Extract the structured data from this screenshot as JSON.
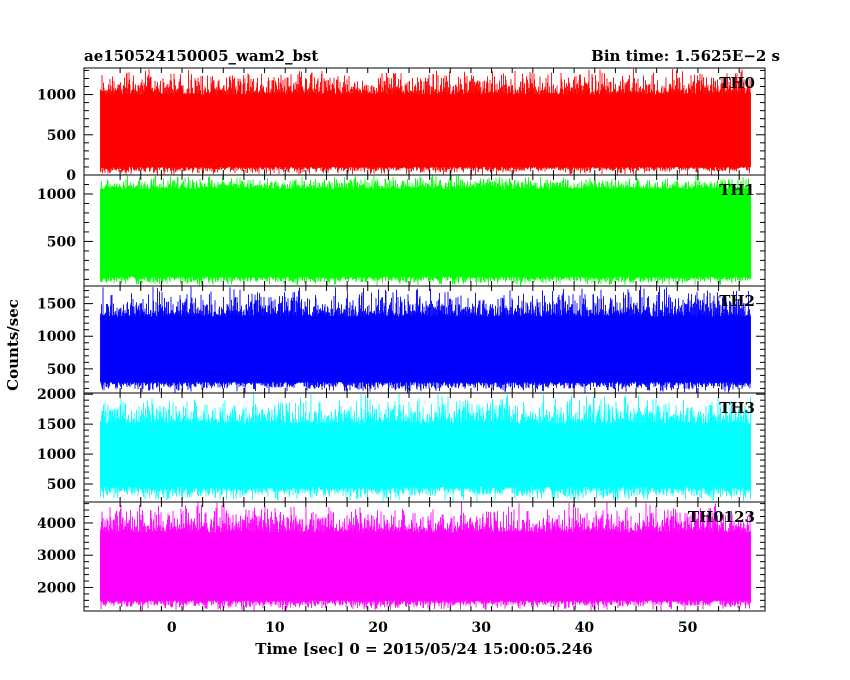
{
  "header": {
    "left_title": "ae150524150005_wam2_bst",
    "right_title": "Bin time: 1.5625E−2 s"
  },
  "xlabel": "Time [sec] 0 = 2015/05/24 15:00:05.246",
  "ylabel": "Counts/sec",
  "chart_data": {
    "type": "line",
    "title": "ae150524150005_wam2_bst",
    "xlabel": "Time [sec] 0 = 2015/05/24 15:00:05.246",
    "ylabel": "Counts/sec",
    "xlim": [
      -8.5,
      57.5
    ],
    "x_ticks": [
      0,
      10,
      20,
      30,
      40,
      50
    ],
    "data_x_range": [
      -6.9,
      56.1
    ],
    "bin_time_s": 0.015625,
    "panels": [
      {
        "name": "TH0",
        "color": "#ff0000",
        "ylim": [
          0,
          1330
        ],
        "y_ticks": [
          0,
          500,
          1000
        ],
        "band_low": 100,
        "band_high": 1000,
        "min": 0,
        "max": 1330
      },
      {
        "name": "TH1",
        "color": "#00ff00",
        "ylim": [
          30,
          1200
        ],
        "y_ticks": [
          500,
          1000
        ],
        "band_low": 130,
        "band_high": 1050,
        "min": 30,
        "max": 1200
      },
      {
        "name": "TH2",
        "color": "#0000ff",
        "ylim": [
          130,
          1770
        ],
        "y_ticks": [
          500,
          1000,
          1500
        ],
        "band_low": 300,
        "band_high": 1300,
        "min": 130,
        "max": 1770
      },
      {
        "name": "TH3",
        "color": "#00ffff",
        "ylim": [
          200,
          2020
        ],
        "y_ticks": [
          500,
          1000,
          1500,
          2000
        ],
        "band_low": 450,
        "band_high": 1500,
        "min": 200,
        "max": 2020
      },
      {
        "name": "TH0123",
        "color": "#ff00ff",
        "ylim": [
          1270,
          4650
        ],
        "y_ticks": [
          2000,
          3000,
          4000
        ],
        "band_low": 1600,
        "band_high": 3700,
        "min": 1270,
        "max": 4650
      }
    ]
  }
}
